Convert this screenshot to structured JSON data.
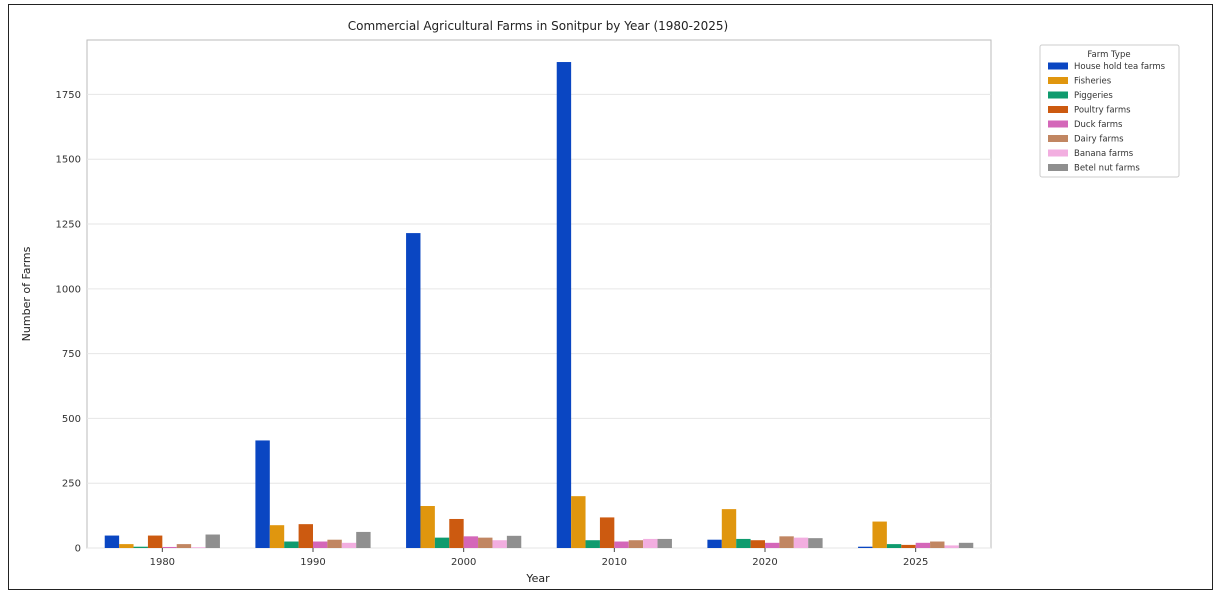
{
  "chart_data": {
    "type": "bar",
    "title": "Commercial Agricultural Farms in Sonitpur by Year (1980-2025)",
    "xlabel": "Year",
    "ylabel": "Number of Farms",
    "ylim": [
      0,
      1960
    ],
    "yticks": [
      0,
      250,
      500,
      750,
      1000,
      1250,
      1500,
      1750
    ],
    "grid": "horizontal",
    "legend_position": "right-outside",
    "legend_title": "Farm Type",
    "categories": [
      "1980",
      "1990",
      "2000",
      "2010",
      "2020",
      "2025"
    ],
    "series": [
      {
        "name": "House hold tea farms",
        "color": "#0a46c2",
        "values": [
          48,
          415,
          1215,
          1875,
          32,
          5
        ]
      },
      {
        "name": "Fisheries",
        "color": "#e0960e",
        "values": [
          15,
          88,
          162,
          200,
          150,
          102
        ]
      },
      {
        "name": "Piggeries",
        "color": "#0f9b6e",
        "values": [
          5,
          25,
          40,
          30,
          35,
          15
        ]
      },
      {
        "name": "Poultry farms",
        "color": "#cc5a10",
        "values": [
          48,
          92,
          112,
          118,
          30,
          12
        ]
      },
      {
        "name": "Duck farms",
        "color": "#d467b9",
        "values": [
          4,
          25,
          45,
          25,
          20,
          20
        ]
      },
      {
        "name": "Dairy farms",
        "color": "#c18662",
        "values": [
          15,
          32,
          40,
          30,
          45,
          25
        ]
      },
      {
        "name": "Banana farms",
        "color": "#f2aee0",
        "values": [
          3,
          20,
          30,
          35,
          40,
          10
        ]
      },
      {
        "name": "Betel nut farms",
        "color": "#8f8f8f",
        "values": [
          52,
          62,
          47,
          35,
          38,
          20
        ]
      }
    ]
  }
}
